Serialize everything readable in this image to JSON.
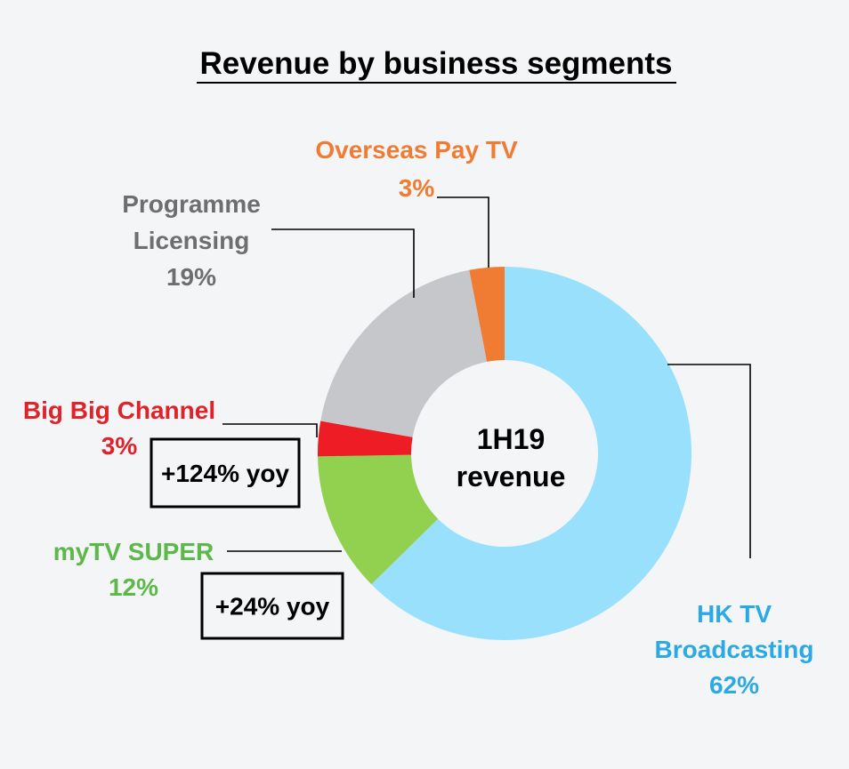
{
  "chart_data": {
    "type": "pie",
    "variant": "donut",
    "title": "Revenue by business segments",
    "center_label": [
      "1H19",
      "revenue"
    ],
    "slices": [
      {
        "name": "HK TV Broadcasting",
        "label_lines": [
          "HK TV",
          "Broadcasting"
        ],
        "value": 62,
        "value_label": "62%",
        "color": "#99e0fc"
      },
      {
        "name": "myTV SUPER",
        "label_lines": [
          "myTV SUPER"
        ],
        "value": 12,
        "value_label": "12%",
        "color": "#92d050",
        "label_color": "#5cb848",
        "annotation": "+24% yoy"
      },
      {
        "name": "Big Big Channel",
        "label_lines": [
          "Big Big Channel"
        ],
        "value": 3,
        "value_label": "3%",
        "color": "#ee1c25",
        "label_color": "#e02229",
        "annotation": "+124% yoy"
      },
      {
        "name": "Programme Licensing",
        "label_lines": [
          "Programme",
          "Licensing"
        ],
        "value": 19,
        "value_label": "19%",
        "color": "#c6c7cb",
        "label_color": "#6d6e70"
      },
      {
        "name": "Overseas Pay TV",
        "label_lines": [
          "Overseas Pay TV"
        ],
        "value": 3,
        "value_label": "3%",
        "color": "#f07c34",
        "label_color": "#f07c34"
      }
    ]
  },
  "colors": {
    "background": "#f4f5f7",
    "hk_tv_label": "#2aa9e6",
    "title": "#000000",
    "leader_line": "#000000"
  }
}
